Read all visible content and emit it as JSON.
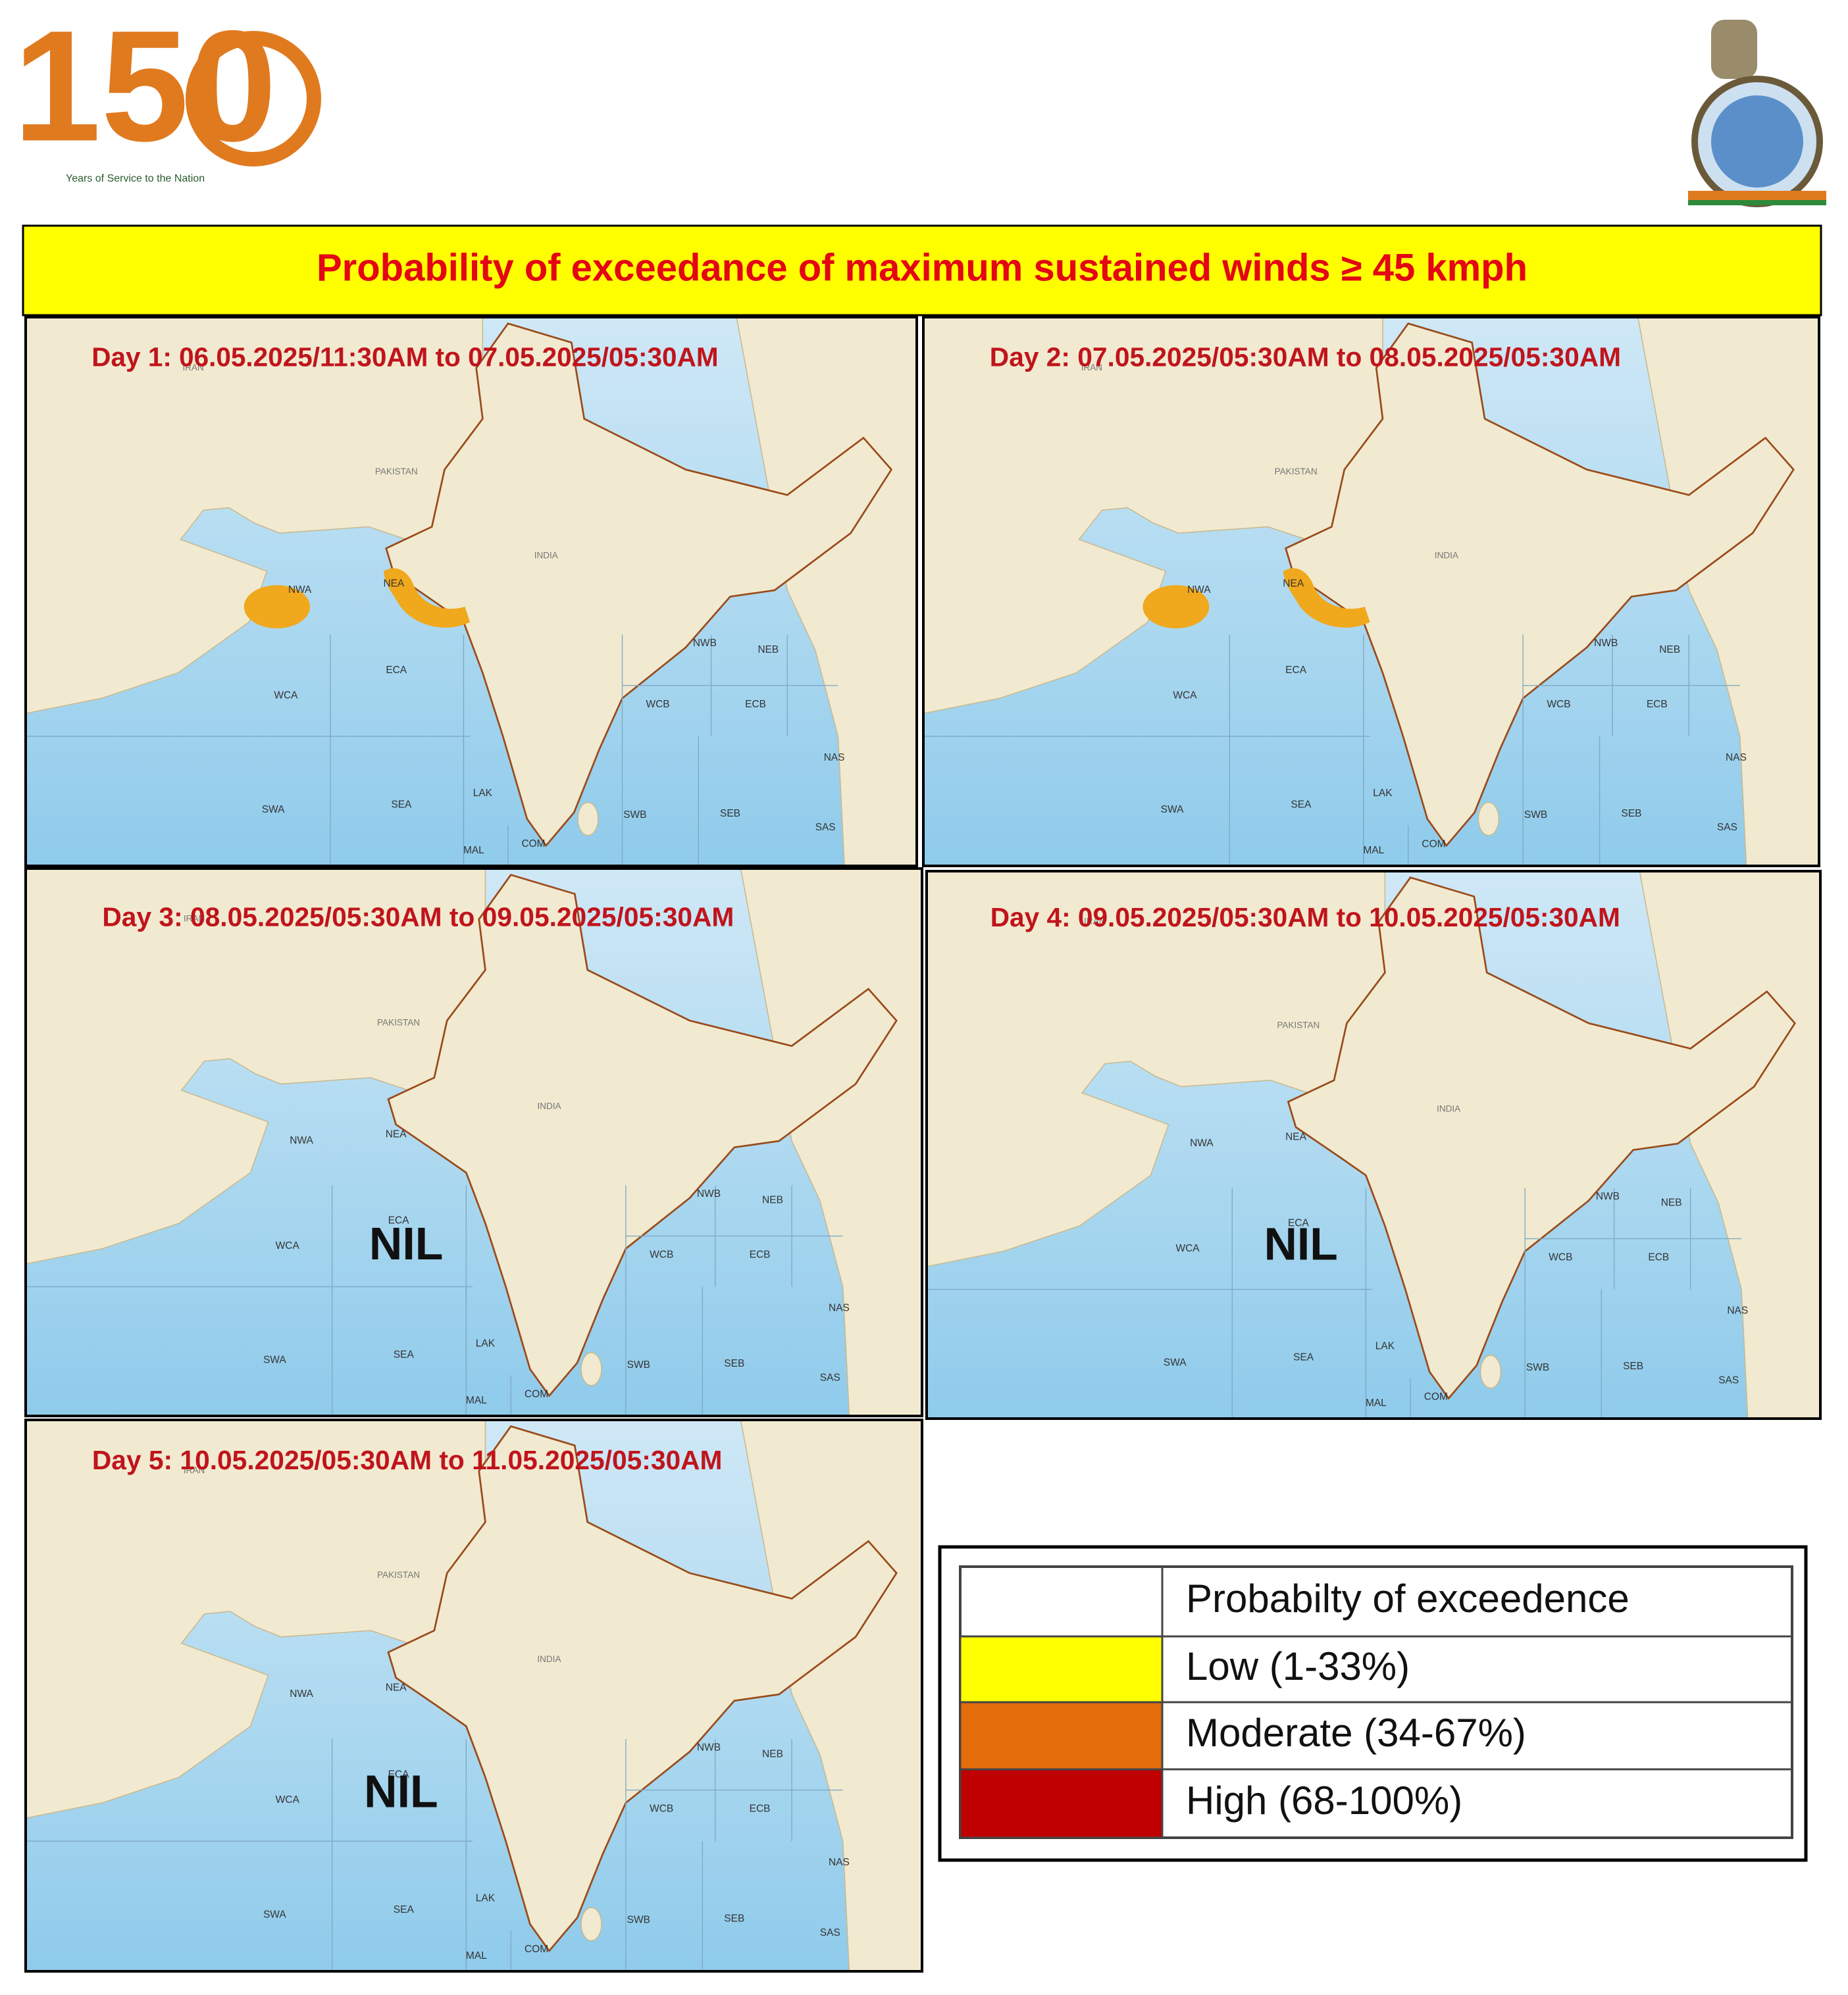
{
  "header": {
    "logo_number": "150",
    "logo_tagline": "Years of Service to the Nation"
  },
  "title": "Probability  of exceedance of maximum sustained winds ≥ 45 kmph",
  "map_labels": {
    "countries": [
      "IRAN",
      "PAKISTAN",
      "INDIA"
    ],
    "zones": [
      "NWA",
      "NEA",
      "ECA",
      "WCA",
      "SWA",
      "SEA",
      "LAK",
      "MAL",
      "COM",
      "NWB",
      "NEB",
      "WCB",
      "ECB",
      "SWB",
      "SEB",
      "NAS",
      "SAS"
    ]
  },
  "panels": [
    {
      "label": "Day 1: 06.05.2025/11:30AM  to 07.05.2025/05:30AM",
      "highlighted_zones": [
        "NWA",
        "NEA"
      ]
    },
    {
      "label": "Day 2: 07.05.2025/05:30AM  to 08.05.2025/05:30AM",
      "highlighted_zones": [
        "NWA",
        "NEA"
      ]
    },
    {
      "label": "Day 3:  08.05.2025/05:30AM  to 09.05.2025/05:30AM",
      "note": "NIL"
    },
    {
      "label": "Day 4: 09.05.2025/05:30AM  to 10.05.2025/05:30AM",
      "note": "NIL"
    },
    {
      "label": "Day 5: 10.05.2025/05:30AM  to 11.05.2025/05:30AM",
      "note": "NIL"
    }
  ],
  "legend": {
    "header": "Probabilty of exceedence",
    "rows": [
      {
        "color": "#ffff00",
        "label": "Low (1-33%)"
      },
      {
        "color": "#e46c0a",
        "label": "Moderate (34-67%)"
      },
      {
        "color": "#c00000",
        "label": "High (68-100%)"
      }
    ]
  }
}
